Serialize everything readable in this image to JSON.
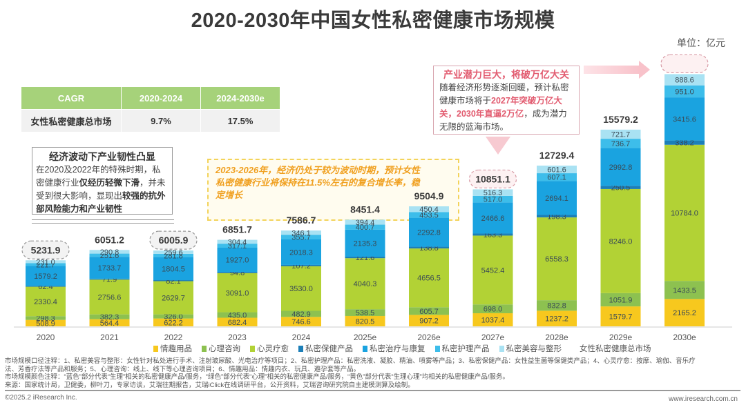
{
  "header": {
    "title": "2020-2030年中国女性私密健康市场规模",
    "unit": "单位：亿元"
  },
  "cagr_table": {
    "headers": [
      "CAGR",
      "2020-2024",
      "2024-2030e"
    ],
    "row_label": "女性私密健康总市场",
    "values": [
      "9.7%",
      "17.5%"
    ]
  },
  "note_left": {
    "heading": "经济波动下产业韧性凸显",
    "text_1": "在2020及2022年的特殊时期，私密健康行业",
    "bold_1": "仅经历轻微下滑",
    "text_2": "，并未受到很大影响，显现出",
    "bold_2": "较强的抗外部风险能力和产业韧性"
  },
  "note_mid": {
    "text": "2023-2026年，经济仍处于较为波动时期，预计女性私密健康行业将保持在11.5%左右的复合增长率，稳定增长"
  },
  "note_right": {
    "heading": "产业潜力巨大，将破万亿大关",
    "text_1": "随着经济形势逐渐回暖，预计私密健康市场将于",
    "pink_1": "2027年突破万亿大关，2030年直逼2万亿",
    "text_2": "，成为潜力无限的蓝海市场。"
  },
  "chart_data": {
    "type": "bar",
    "stacked": true,
    "title": "2020-2030年中国女性私密健康市场规模",
    "ylabel": "单位：亿元",
    "categories": [
      "2020",
      "2021",
      "2022",
      "2023",
      "2024",
      "2025e",
      "2026e",
      "2027e",
      "2028e",
      "2029e",
      "2030e"
    ],
    "series": [
      {
        "name": "情趣用品",
        "color": "#f7c81e",
        "values": [
          508.9,
          564.4,
          622.2,
          682.4,
          746.6,
          820.5,
          907.2,
          1037.4,
          1237.2,
          1579.7,
          2165.2
        ]
      },
      {
        "name": "心理咨询",
        "color": "#8dc150",
        "values": [
          298.3,
          382.3,
          326.0,
          435.0,
          482.9,
          538.5,
          605.7,
          698.0,
          832.8,
          1051.9,
          1433.5
        ]
      },
      {
        "name": "心灵疗愈",
        "color": "#b2d235",
        "values": [
          2330.4,
          2756.6,
          2629.7,
          3091.0,
          3530.0,
          4040.3,
          4656.5,
          5452.4,
          6558.3,
          8246.0,
          10784.0
        ]
      },
      {
        "name": "私密保健产品",
        "color": "#1c7fb8",
        "values": [
          62.4,
          71.9,
          82.1,
          94.8,
          107.2,
          121.6,
          138.8,
          163.3,
          198.3,
          250.5,
          338.2
        ]
      },
      {
        "name": "私密治疗与康复",
        "color": "#1aa3e0",
        "values": [
          1579.2,
          1733.7,
          1804.5,
          1927.0,
          2018.3,
          2135.3,
          2292.8,
          2466.6,
          2694.1,
          2992.8,
          3415.6
        ]
      },
      {
        "name": "私密护理产品",
        "color": "#3dbdea",
        "values": [
          221.7,
          251.6,
          281.8,
          317.1,
          355.7,
          400.7,
          453.5,
          517.0,
          607.1,
          736.7,
          951.0
        ]
      },
      {
        "name": "私密美容与整形",
        "color": "#a9e2f3",
        "values": [
          231.0,
          290.8,
          259.6,
          304.4,
          346.1,
          394.4,
          450.4,
          516.3,
          601.6,
          721.7,
          888.6
        ]
      }
    ],
    "totals_label": "女性私密健康总市场",
    "totals": [
      5231.9,
      6051.2,
      6005.9,
      6851.7,
      7586.7,
      8451.4,
      9504.9,
      10851.1,
      12729.4,
      15579.2,
      null
    ],
    "highlighted_totals": [
      "2020",
      "2022",
      "2027e",
      "2030e"
    ],
    "ylim": [
      0,
      20000
    ],
    "grid": false,
    "legend_position": "bottom"
  },
  "footnotes": {
    "line1": "市场规模口径注释：1、私密美容与整形：女性针对私处进行手术、注射玻尿酸、光电治疗等项目；2、私密护理产品：私密洗液、凝胶、精油、喷雾等产品；3、私密保健产品：女性益生菌等保健类产品；4、心灵疗愈：按摩、瑜伽、音乐疗",
    "line2": "法、芳香疗法等产品和服务；5、心理咨询：线上、线下等心理咨询项目；6、情趣用品：情趣内衣、玩具、避孕套等产品。",
    "line3": "市场规模颜色注释：“蓝色”部分代表“生理”相关的私密健康产品/服务，“绿色”部分代表“心理”相关的私密健康产品/服务，“黄色”部分代表“生理心理”均相关的私密健康产品/服务。",
    "line4": "来源：国家统计局，卫健委，柳叶刀，专家访谈，艾瑞往期报告，艾瑞iClick在线调研平台，公开资料，艾瑞咨询研究院自主建模测算及绘制。"
  },
  "footer": {
    "copyright": "©2025.2 iResearch Inc.",
    "site": "www.iresearch.com.cn"
  }
}
